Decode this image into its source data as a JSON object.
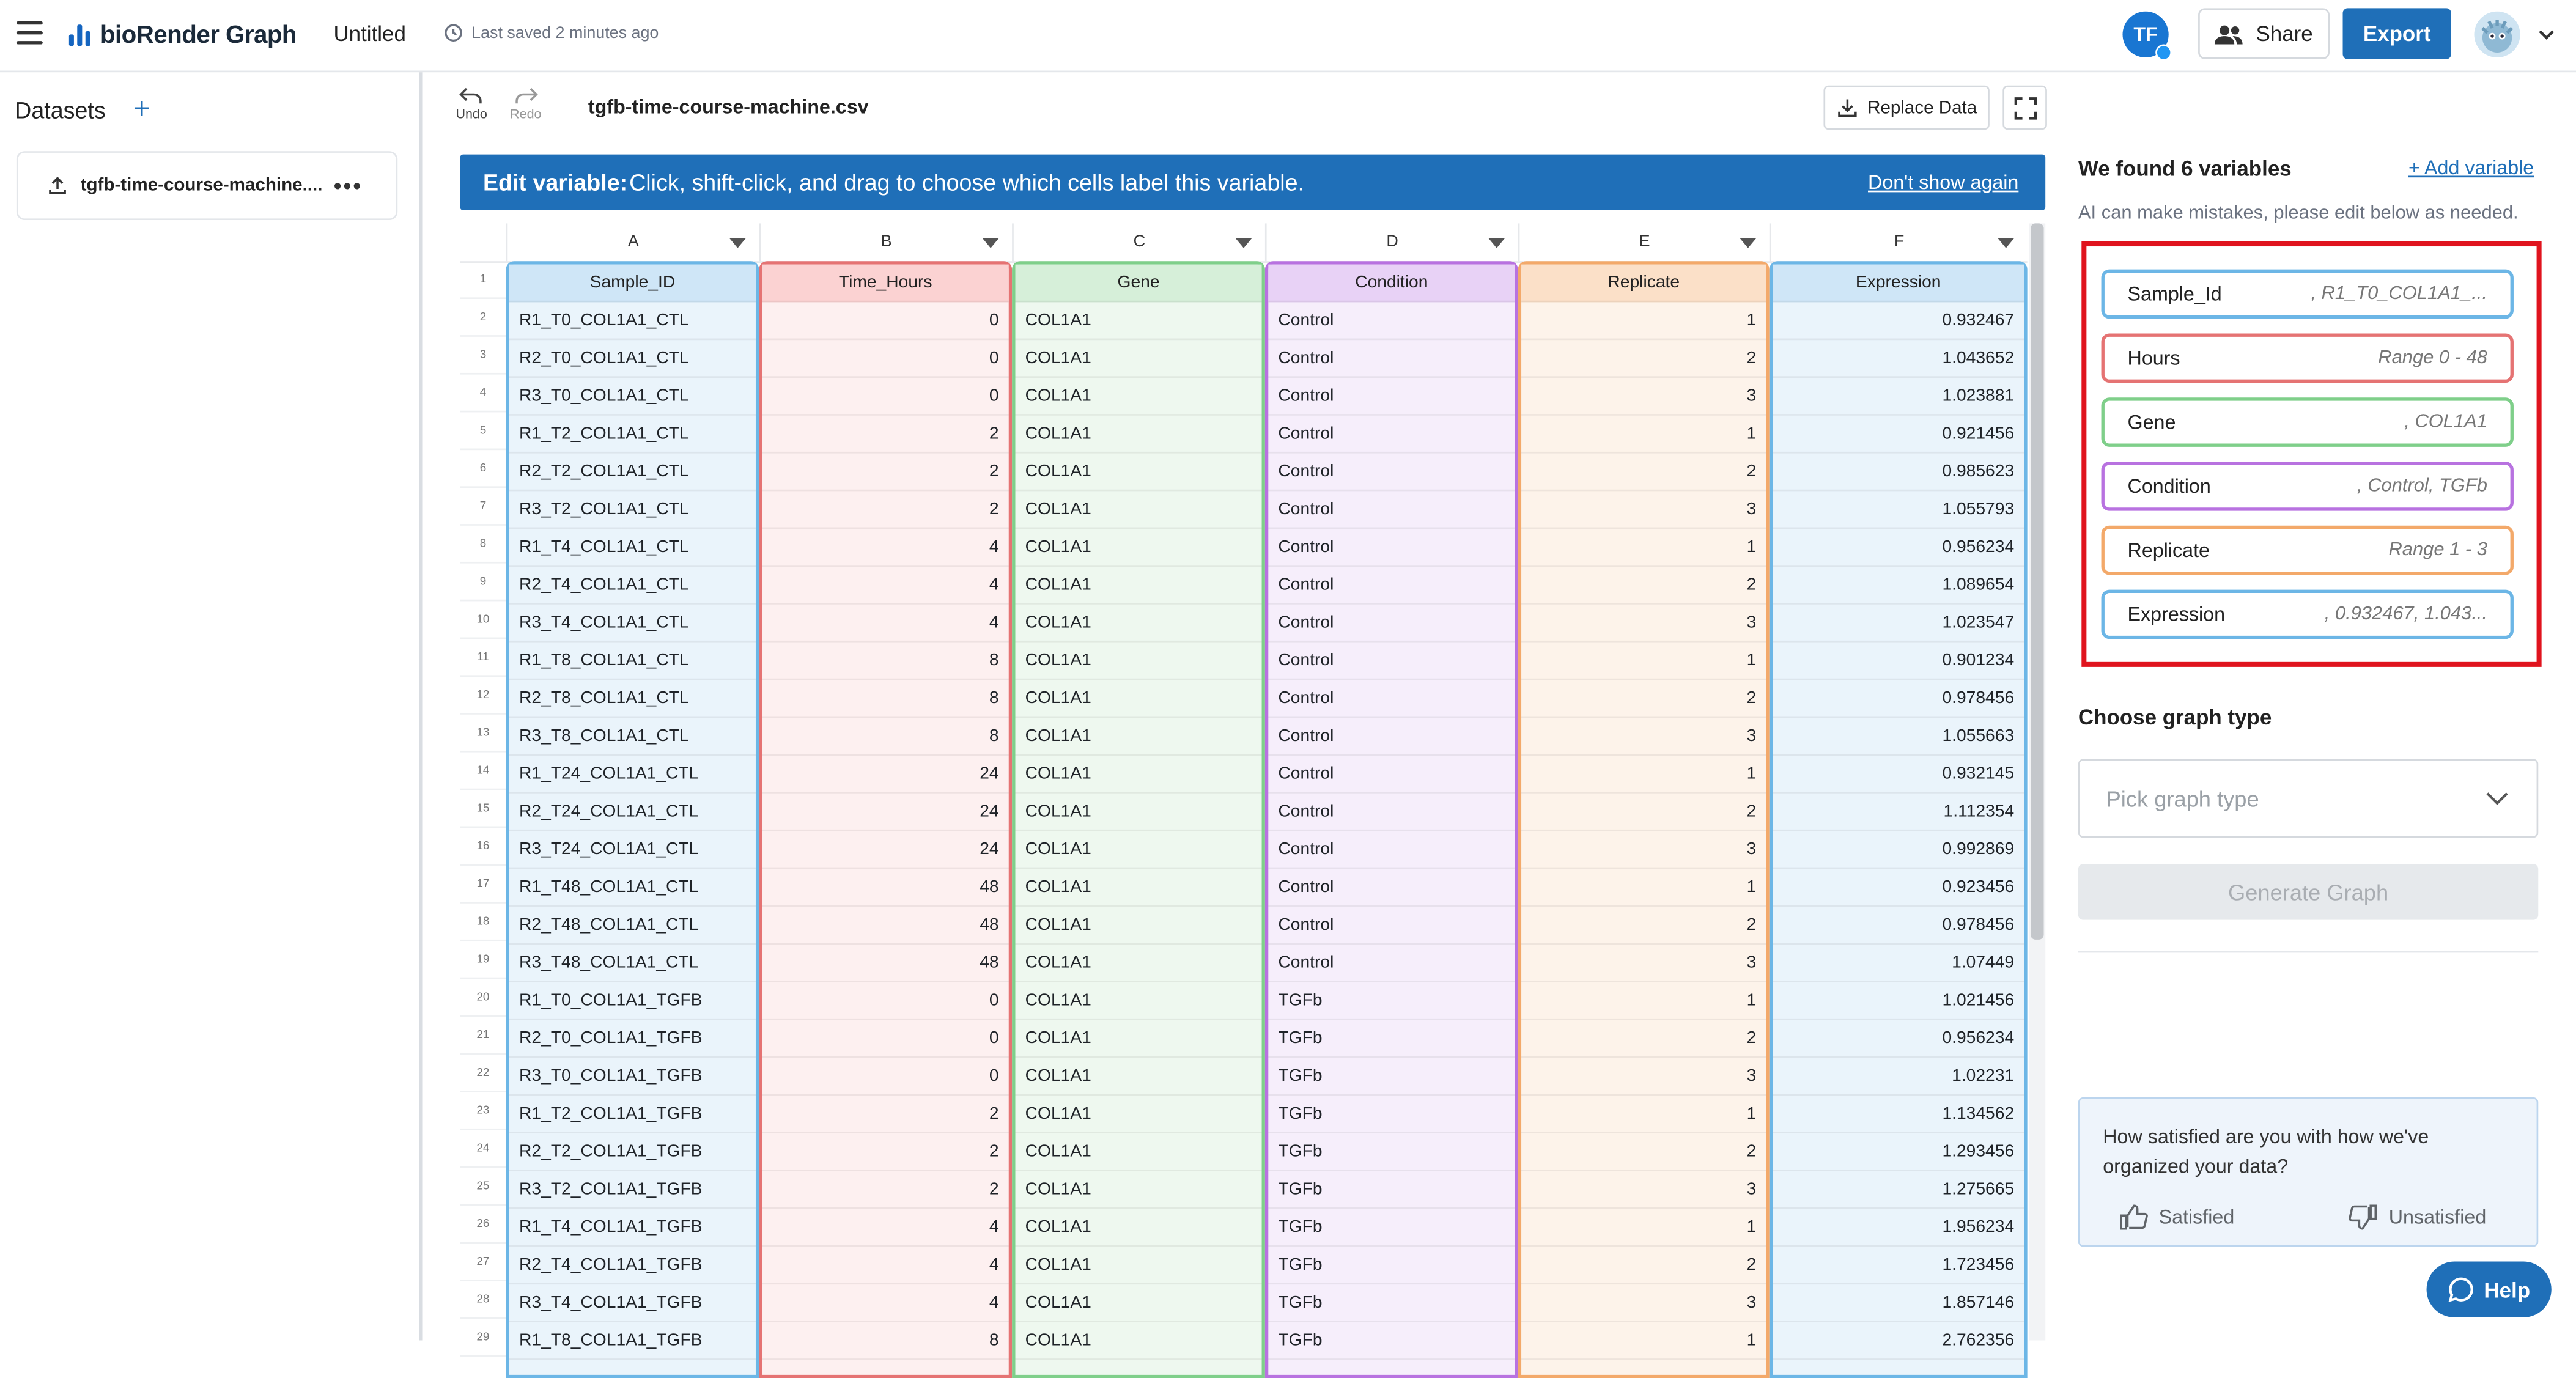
{
  "app": {
    "logo_text": "bioRender Graph",
    "doc_title": "Untitled",
    "saved_status": "Last saved 2 minutes ago",
    "user_initials": "TF",
    "share_label": "Share",
    "export_label": "Export",
    "colors": {
      "accent": "#1f6fb8",
      "highlight": "#e0141e"
    }
  },
  "sidebar": {
    "title": "Datasets",
    "dataset_name": "tgfb-time-course-machine...."
  },
  "toolbar": {
    "undo_label": "Undo",
    "redo_label": "Redo",
    "file_name": "tgfb-time-course-machine.csv",
    "replace_label": "Replace Data"
  },
  "banner": {
    "title": "Edit variable:",
    "message": "Click, shift-click, and drag to choose which cells label this variable.",
    "dismiss": "Don't show again"
  },
  "grid": {
    "columns": [
      {
        "letter": "A",
        "header": "Sample_ID",
        "border": "#6cb6e6",
        "bg": "#eaf4fb",
        "head_bg": "#cfe6f7",
        "align": "left"
      },
      {
        "letter": "B",
        "header": "Time_Hours",
        "border": "#e57373",
        "bg": "#fdf0f0",
        "head_bg": "#fbd2d2",
        "align": "right"
      },
      {
        "letter": "C",
        "header": "Gene",
        "border": "#7fcf8a",
        "bg": "#eef8ef",
        "head_bg": "#d6efd9",
        "align": "left"
      },
      {
        "letter": "D",
        "header": "Condition",
        "border": "#b872e0",
        "bg": "#f6eefb",
        "head_bg": "#e8d2f6",
        "align": "left"
      },
      {
        "letter": "E",
        "header": "Replicate",
        "border": "#f3a96a",
        "bg": "#fdf3ea",
        "head_bg": "#fbe0c8",
        "align": "right"
      },
      {
        "letter": "F",
        "header": "Expression",
        "border": "#6cb6e6",
        "bg": "#eaf4fb",
        "head_bg": "#cfe6f7",
        "align": "right"
      }
    ],
    "row_numbers": [
      "1",
      "2",
      "3",
      "4",
      "5",
      "6",
      "7",
      "8",
      "9",
      "10",
      "11",
      "12",
      "13",
      "14",
      "15",
      "16",
      "17",
      "18",
      "19",
      "20",
      "21",
      "22",
      "23",
      "24",
      "25",
      "26",
      "27",
      "28",
      "29"
    ],
    "rows": [
      [
        "R1_T0_COL1A1_CTL",
        "0",
        "COL1A1",
        "Control",
        "1",
        "0.932467"
      ],
      [
        "R2_T0_COL1A1_CTL",
        "0",
        "COL1A1",
        "Control",
        "2",
        "1.043652"
      ],
      [
        "R3_T0_COL1A1_CTL",
        "0",
        "COL1A1",
        "Control",
        "3",
        "1.023881"
      ],
      [
        "R1_T2_COL1A1_CTL",
        "2",
        "COL1A1",
        "Control",
        "1",
        "0.921456"
      ],
      [
        "R2_T2_COL1A1_CTL",
        "2",
        "COL1A1",
        "Control",
        "2",
        "0.985623"
      ],
      [
        "R3_T2_COL1A1_CTL",
        "2",
        "COL1A1",
        "Control",
        "3",
        "1.055793"
      ],
      [
        "R1_T4_COL1A1_CTL",
        "4",
        "COL1A1",
        "Control",
        "1",
        "0.956234"
      ],
      [
        "R2_T4_COL1A1_CTL",
        "4",
        "COL1A1",
        "Control",
        "2",
        "1.089654"
      ],
      [
        "R3_T4_COL1A1_CTL",
        "4",
        "COL1A1",
        "Control",
        "3",
        "1.023547"
      ],
      [
        "R1_T8_COL1A1_CTL",
        "8",
        "COL1A1",
        "Control",
        "1",
        "0.901234"
      ],
      [
        "R2_T8_COL1A1_CTL",
        "8",
        "COL1A1",
        "Control",
        "2",
        "0.978456"
      ],
      [
        "R3_T8_COL1A1_CTL",
        "8",
        "COL1A1",
        "Control",
        "3",
        "1.055663"
      ],
      [
        "R1_T24_COL1A1_CTL",
        "24",
        "COL1A1",
        "Control",
        "1",
        "0.932145"
      ],
      [
        "R2_T24_COL1A1_CTL",
        "24",
        "COL1A1",
        "Control",
        "2",
        "1.112354"
      ],
      [
        "R3_T24_COL1A1_CTL",
        "24",
        "COL1A1",
        "Control",
        "3",
        "0.992869"
      ],
      [
        "R1_T48_COL1A1_CTL",
        "48",
        "COL1A1",
        "Control",
        "1",
        "0.923456"
      ],
      [
        "R2_T48_COL1A1_CTL",
        "48",
        "COL1A1",
        "Control",
        "2",
        "0.978456"
      ],
      [
        "R3_T48_COL1A1_CTL",
        "48",
        "COL1A1",
        "Control",
        "3",
        "1.07449"
      ],
      [
        "R1_T0_COL1A1_TGFB",
        "0",
        "COL1A1",
        "TGFb",
        "1",
        "1.021456"
      ],
      [
        "R2_T0_COL1A1_TGFB",
        "0",
        "COL1A1",
        "TGFb",
        "2",
        "0.956234"
      ],
      [
        "R3_T0_COL1A1_TGFB",
        "0",
        "COL1A1",
        "TGFb",
        "3",
        "1.02231"
      ],
      [
        "R1_T2_COL1A1_TGFB",
        "2",
        "COL1A1",
        "TGFb",
        "1",
        "1.134562"
      ],
      [
        "R2_T2_COL1A1_TGFB",
        "2",
        "COL1A1",
        "TGFb",
        "2",
        "1.293456"
      ],
      [
        "R3_T2_COL1A1_TGFB",
        "2",
        "COL1A1",
        "TGFb",
        "3",
        "1.275665"
      ],
      [
        "R1_T4_COL1A1_TGFB",
        "4",
        "COL1A1",
        "TGFb",
        "1",
        "1.956234"
      ],
      [
        "R2_T4_COL1A1_TGFB",
        "4",
        "COL1A1",
        "TGFb",
        "2",
        "1.723456"
      ],
      [
        "R3_T4_COL1A1_TGFB",
        "4",
        "COL1A1",
        "TGFb",
        "3",
        "1.857146"
      ],
      [
        "R1_T8_COL1A1_TGFB",
        "8",
        "COL1A1",
        "TGFb",
        "1",
        "2.762356"
      ]
    ]
  },
  "variables_panel": {
    "title": "We found 6 variables",
    "add_label": "+ Add variable",
    "note": "AI can make mistakes, please edit below as needed.",
    "variables": [
      {
        "name": "Sample_Id",
        "summary": ", R1_T0_COL1A1_...",
        "border": "#6cb6e6"
      },
      {
        "name": "Hours",
        "summary": "Range 0 - 48",
        "border": "#e57373"
      },
      {
        "name": "Gene",
        "summary": ", COL1A1",
        "border": "#7fcf8a"
      },
      {
        "name": "Condition",
        "summary": ", Control, TGFb",
        "border": "#b872e0"
      },
      {
        "name": "Replicate",
        "summary": "Range 1 - 3",
        "border": "#f3a96a"
      },
      {
        "name": "Expression",
        "summary": ", 0.932467, 1.043...",
        "border": "#6cb6e6"
      }
    ],
    "graph_type_title": "Choose graph type",
    "graph_type_placeholder": "Pick graph type",
    "generate_label": "Generate Graph"
  },
  "feedback": {
    "question": "How satisfied are you with how we've organized your data?",
    "satisfied": "Satisfied",
    "unsatisfied": "Unsatisfied"
  },
  "help_label": "Help"
}
